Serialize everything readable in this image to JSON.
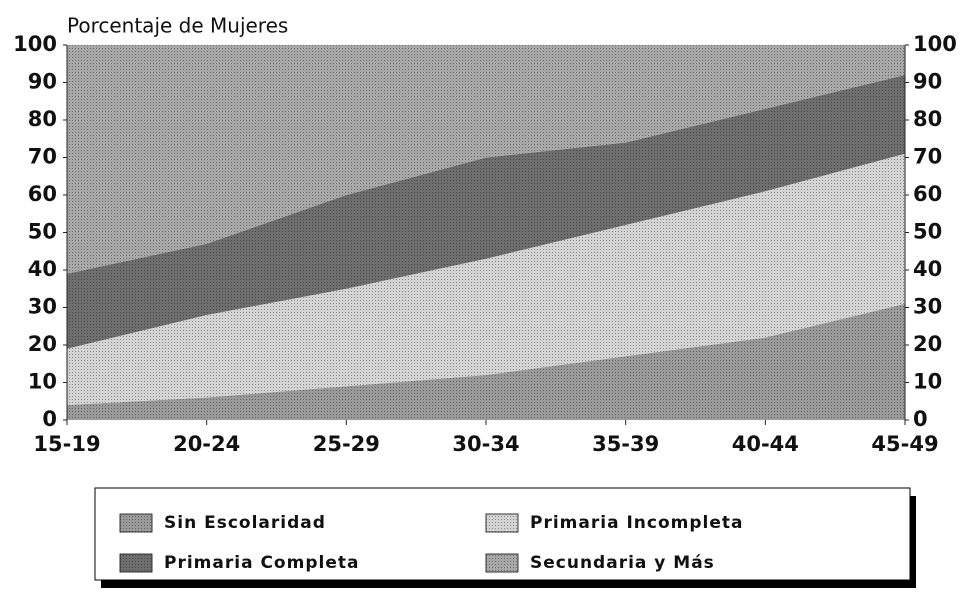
{
  "chart_data": {
    "type": "stacked_area",
    "title": "Porcentaje de Mujeres",
    "categories": [
      "15-19",
      "20-24",
      "25-29",
      "30-34",
      "35-39",
      "40-44",
      "45-49"
    ],
    "series": [
      {
        "name": "Sin Escolaridad",
        "color": "#9a9a9a",
        "values": [
          4,
          6,
          9,
          12,
          17,
          22,
          31
        ]
      },
      {
        "name": "Primaria Incompleta",
        "color": "#d4d4d4",
        "values": [
          15,
          22,
          26,
          31,
          35,
          39,
          40
        ]
      },
      {
        "name": "Primaria Completa",
        "color": "#6e6e6e",
        "values": [
          20,
          19,
          25,
          27,
          22,
          22,
          21
        ]
      },
      {
        "name": "Secundaria y Más",
        "color": "#a8a8a8",
        "values": [
          61,
          53,
          40,
          30,
          26,
          17,
          8
        ]
      }
    ],
    "ylim": [
      0,
      100
    ],
    "yticks": [
      0,
      10,
      20,
      30,
      40,
      50,
      60,
      70,
      80,
      90,
      100
    ]
  }
}
